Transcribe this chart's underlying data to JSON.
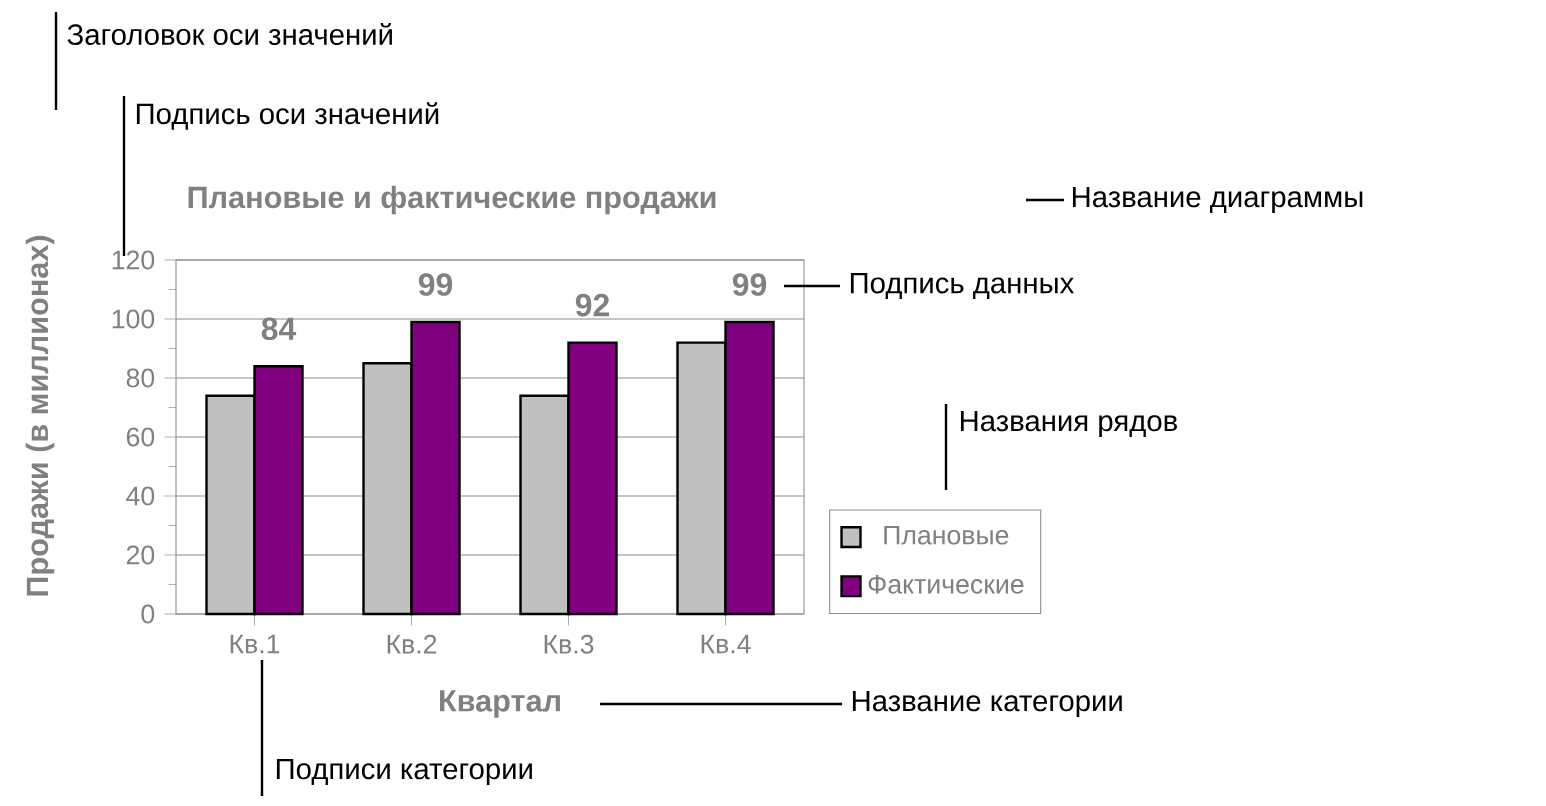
{
  "chart_data": {
    "type": "bar",
    "title": "Плановые и фактические продажи",
    "xlabel": "Квартал",
    "ylabel": "Продажи (в миллионах)",
    "categories": [
      "Кв.1",
      "Кв.2",
      "Кв.3",
      "Кв.4"
    ],
    "series": [
      {
        "name": "Плановые",
        "color": "#c0c0c0",
        "values": [
          74,
          85,
          74,
          92
        ]
      },
      {
        "name": "Фактические",
        "color": "#800080",
        "values": [
          84,
          99,
          92,
          99
        ],
        "value_labels": [
          "84",
          "99",
          "92",
          "99"
        ]
      }
    ],
    "ylim": [
      0,
      120
    ],
    "yticks": [
      0,
      20,
      40,
      60,
      80,
      100,
      120
    ],
    "grid": "y",
    "legend": "right",
    "annotations": [
      "Заголовок оси значений",
      "Подпись оси значений",
      "Название диаграммы",
      "Подпись данных",
      "Названия рядов",
      "Название категории",
      "Подписи категории"
    ]
  }
}
